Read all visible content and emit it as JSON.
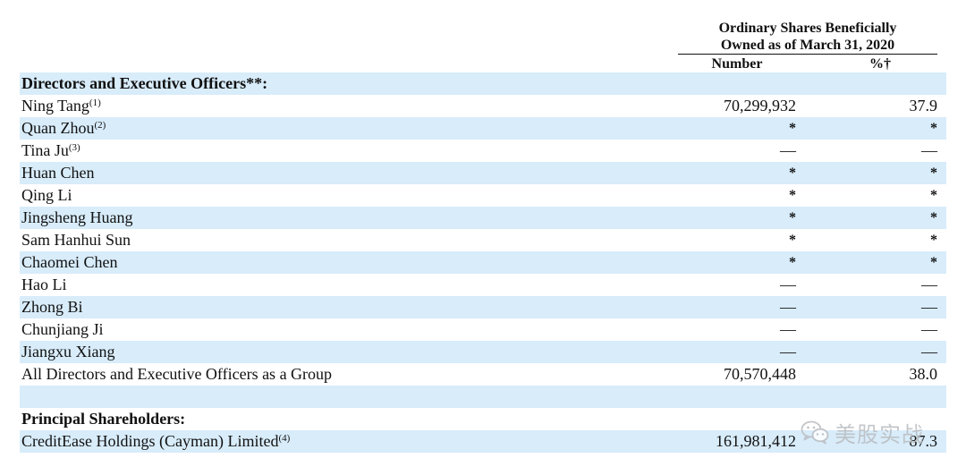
{
  "header": {
    "title_line1": "Ordinary Shares Beneficially",
    "title_line2": "Owned as of March 31, 2020",
    "col_number": "Number",
    "col_pct": "%†"
  },
  "rows": [
    {
      "name": "Directors and Executive Officers**:",
      "sup": "",
      "number": "",
      "pct": "",
      "bold": true
    },
    {
      "name": "Ning Tang",
      "sup": "(1)",
      "number": "70,299,932",
      "pct": "37.9"
    },
    {
      "name": "Quan Zhou",
      "sup": "(2)",
      "number": "*",
      "pct": "*"
    },
    {
      "name": "Tina Ju",
      "sup": "(3)",
      "number": "—",
      "pct": "—"
    },
    {
      "name": "Huan Chen",
      "sup": "",
      "number": "*",
      "pct": "*"
    },
    {
      "name": "Qing Li",
      "sup": "",
      "number": "*",
      "pct": "*"
    },
    {
      "name": "Jingsheng Huang",
      "sup": "",
      "number": "*",
      "pct": "*"
    },
    {
      "name": "Sam Hanhui Sun",
      "sup": "",
      "number": "*",
      "pct": "*"
    },
    {
      "name": "Chaomei Chen",
      "sup": "",
      "number": "*",
      "pct": "*"
    },
    {
      "name": "Hao Li",
      "sup": "",
      "number": "—",
      "pct": "—"
    },
    {
      "name": "Zhong Bi",
      "sup": "",
      "number": "—",
      "pct": "—"
    },
    {
      "name": "Chunjiang Ji",
      "sup": "",
      "number": "—",
      "pct": "—"
    },
    {
      "name": "Jiangxu Xiang",
      "sup": "",
      "number": "—",
      "pct": "—"
    },
    {
      "name": "All Directors and Executive Officers as a Group",
      "sup": "",
      "number": "70,570,448",
      "pct": "38.0"
    },
    {
      "name": "",
      "sup": "",
      "number": "",
      "pct": ""
    },
    {
      "name": "Principal Shareholders:",
      "sup": "",
      "number": "",
      "pct": "",
      "bold": true
    },
    {
      "name": "CreditEase Holdings (Cayman) Limited",
      "sup": "(4)",
      "number": "161,981,412",
      "pct": "87.3"
    }
  ],
  "watermark": {
    "text": "美股实战",
    "icon": "wechat-icon"
  }
}
